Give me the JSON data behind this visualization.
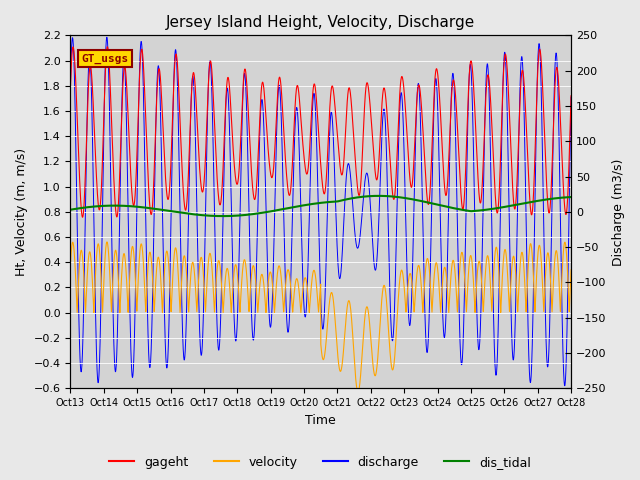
{
  "title": "Jersey Island Height, Velocity, Discharge",
  "xlabel": "Time",
  "ylabel_left": "Ht, Velocity (m, m/s)",
  "ylabel_right": "Discharge (m3/s)",
  "ylim_left": [
    -0.6,
    2.2
  ],
  "ylim_right": [
    -250,
    250
  ],
  "bg_color": "#e8e8e8",
  "ax_bg_color": "#d3d3d3",
  "legend_labels": [
    "gageht",
    "velocity",
    "discharge",
    "dis_tidal"
  ],
  "legend_colors": [
    "red",
    "orange",
    "blue",
    "green"
  ],
  "watermark_text": "GT_usgs",
  "watermark_bg": "#FFD700",
  "watermark_border": "#8B0000",
  "xtick_labels": [
    "Oct 13",
    "Oct 14",
    "Oct 15",
    "Oct 16",
    "Oct 17",
    "Oct 18",
    "Oct 19",
    "Oct 20",
    "Oct 21",
    "Oct 22",
    "Oct 23",
    "Oct 24",
    "Oct 25",
    "Oct 26",
    "Oct 27",
    "Oct 28"
  ],
  "yticks_left": [
    -0.6,
    -0.4,
    -0.2,
    0.0,
    0.2,
    0.4,
    0.6,
    0.8,
    1.0,
    1.2,
    1.4,
    1.6,
    1.8,
    2.0,
    2.2
  ],
  "yticks_right": [
    -250,
    -200,
    -150,
    -100,
    -50,
    0,
    50,
    100,
    150,
    200,
    250
  ]
}
